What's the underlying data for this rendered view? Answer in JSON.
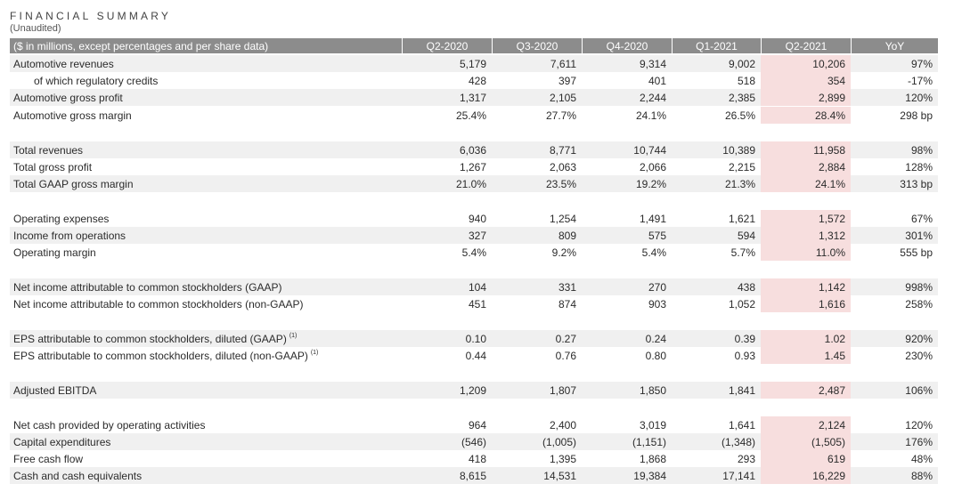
{
  "title": "FINANCIAL SUMMARY",
  "subtitle": "(Unaudited)",
  "header": {
    "label": "($ in millions, except percentages and per share data)",
    "columns": [
      "Q2-2020",
      "Q3-2020",
      "Q4-2020",
      "Q1-2021",
      "Q2-2021",
      "YoY"
    ]
  },
  "highlight_color": "#f7dede",
  "rows": [
    {
      "label": "Automotive revenues",
      "values": [
        "5,179",
        "7,611",
        "9,314",
        "9,002",
        "10,206",
        "97%"
      ]
    },
    {
      "label": "of which regulatory credits",
      "values": [
        "428",
        "397",
        "401",
        "518",
        "354",
        "-17%"
      ]
    },
    {
      "label": "Automotive gross profit",
      "values": [
        "1,317",
        "2,105",
        "2,244",
        "2,385",
        "2,899",
        "120%"
      ]
    },
    {
      "label": "Automotive gross margin",
      "values": [
        "25.4%",
        "27.7%",
        "24.1%",
        "26.5%",
        "28.4%",
        "298 bp"
      ]
    },
    {
      "label": "Total revenues",
      "values": [
        "6,036",
        "8,771",
        "10,744",
        "10,389",
        "11,958",
        "98%"
      ]
    },
    {
      "label": "Total gross profit",
      "values": [
        "1,267",
        "2,063",
        "2,066",
        "2,215",
        "2,884",
        "128%"
      ]
    },
    {
      "label": "Total GAAP gross margin",
      "values": [
        "21.0%",
        "23.5%",
        "19.2%",
        "21.3%",
        "24.1%",
        "313 bp"
      ]
    },
    {
      "label": "Operating expenses",
      "values": [
        "940",
        "1,254",
        "1,491",
        "1,621",
        "1,572",
        "67%"
      ]
    },
    {
      "label": "Income from operations",
      "values": [
        "327",
        "809",
        "575",
        "594",
        "1,312",
        "301%"
      ]
    },
    {
      "label": "Operating margin",
      "values": [
        "5.4%",
        "9.2%",
        "5.4%",
        "5.7%",
        "11.0%",
        "555 bp"
      ]
    },
    {
      "label": "Net income attributable to common stockholders (GAAP)",
      "values": [
        "104",
        "331",
        "270",
        "438",
        "1,142",
        "998%"
      ]
    },
    {
      "label": "Net income attributable to common stockholders (non-GAAP)",
      "values": [
        "451",
        "874",
        "903",
        "1,052",
        "1,616",
        "258%"
      ]
    },
    {
      "label": "EPS attributable to common stockholders, diluted (GAAP)",
      "note": "(1)",
      "values": [
        "0.10",
        "0.27",
        "0.24",
        "0.39",
        "1.02",
        "920%"
      ]
    },
    {
      "label": "EPS attributable to common stockholders, diluted (non-GAAP)",
      "note": "(1)",
      "values": [
        "0.44",
        "0.76",
        "0.80",
        "0.93",
        "1.45",
        "230%"
      ]
    },
    {
      "label": "Adjusted EBITDA",
      "values": [
        "1,209",
        "1,807",
        "1,850",
        "1,841",
        "2,487",
        "106%"
      ]
    },
    {
      "label": "Net cash provided by operating activities",
      "values": [
        "964",
        "2,400",
        "3,019",
        "1,641",
        "2,124",
        "120%"
      ]
    },
    {
      "label": "Capital expenditures",
      "values": [
        "(546)",
        "(1,005)",
        "(1,151)",
        "(1,348)",
        "(1,505)",
        "176%"
      ]
    },
    {
      "label": "Free cash flow",
      "values": [
        "418",
        "1,395",
        "1,868",
        "293",
        "619",
        "48%"
      ]
    },
    {
      "label": "Cash and cash equivalents",
      "values": [
        "8,615",
        "14,531",
        "19,384",
        "17,141",
        "16,229",
        "88%"
      ]
    }
  ]
}
